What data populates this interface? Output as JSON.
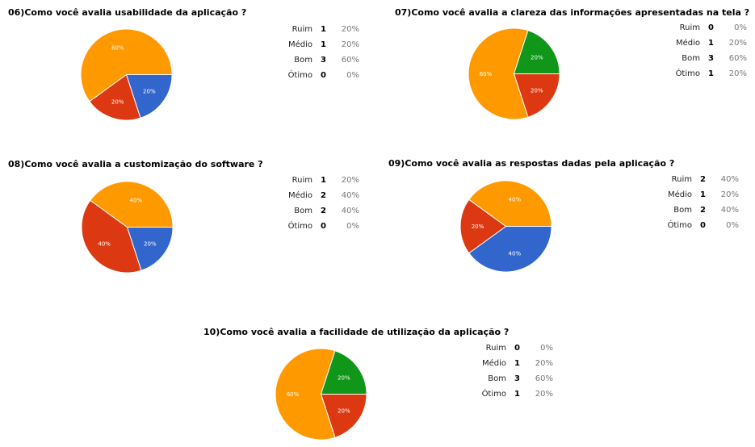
{
  "chart_data": [
    {
      "type": "pie",
      "title": "06)Como você avalia usabilidade da aplicação ?",
      "legend_position": "right",
      "categories": [
        "Ruim",
        "Médio",
        "Bom",
        "Ótimo"
      ],
      "values": [
        1,
        1,
        3,
        0
      ],
      "percentages": [
        "20%",
        "20%",
        "60%",
        "0%"
      ],
      "colors": [
        "#3366cc",
        "#dc3912",
        "#ff9900",
        "#109618"
      ]
    },
    {
      "type": "pie",
      "title": "07)Como você avalia a clareza das informações apresentadas na tela ?",
      "legend_position": "right",
      "categories": [
        "Ruim",
        "Médio",
        "Bom",
        "Ótimo"
      ],
      "values": [
        0,
        1,
        3,
        1
      ],
      "percentages": [
        "0%",
        "20%",
        "60%",
        "20%"
      ],
      "colors": [
        "#3366cc",
        "#dc3912",
        "#ff9900",
        "#109618"
      ]
    },
    {
      "type": "pie",
      "title": "08)Como você avalia a customização do software ?",
      "legend_position": "right",
      "categories": [
        "Ruim",
        "Médio",
        "Bom",
        "Ótimo"
      ],
      "values": [
        1,
        2,
        2,
        0
      ],
      "percentages": [
        "20%",
        "40%",
        "40%",
        "0%"
      ],
      "colors": [
        "#3366cc",
        "#dc3912",
        "#ff9900",
        "#109618"
      ]
    },
    {
      "type": "pie",
      "title": "09)Como você avalia as respostas dadas pela aplicação ?",
      "legend_position": "right",
      "categories": [
        "Ruim",
        "Médio",
        "Bom",
        "Ótimo"
      ],
      "values": [
        2,
        1,
        2,
        0
      ],
      "percentages": [
        "40%",
        "20%",
        "40%",
        "0%"
      ],
      "colors": [
        "#3366cc",
        "#dc3912",
        "#ff9900",
        "#109618"
      ]
    },
    {
      "type": "pie",
      "title": "10)Como você avalia a facilidade de utilização da aplicação ?",
      "legend_position": "right",
      "categories": [
        "Ruim",
        "Médio",
        "Bom",
        "Ótimo"
      ],
      "values": [
        0,
        1,
        3,
        1
      ],
      "percentages": [
        "0%",
        "20%",
        "60%",
        "20%"
      ],
      "colors": [
        "#3366cc",
        "#dc3912",
        "#ff9900",
        "#109618"
      ]
    }
  ]
}
